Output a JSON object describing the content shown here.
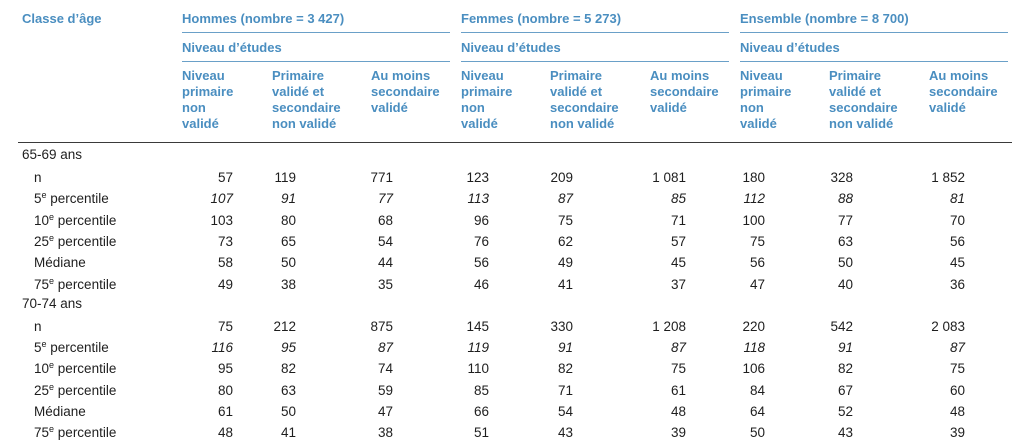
{
  "header": {
    "age_label": "Classe d’âge",
    "groups": [
      {
        "title": "Hommes (nombre = 3 427)",
        "sublabel": "Niveau d’études"
      },
      {
        "title": "Femmes (nombre = 5 273)",
        "sublabel": "Niveau d’études"
      },
      {
        "title": "Ensemble (nombre = 8 700)",
        "sublabel": "Niveau d’études"
      }
    ],
    "columns": [
      "Niveau primaire non validé",
      "Primaire validé et secondaire non validé",
      "Au moins secondaire validé"
    ]
  },
  "sections": [
    {
      "label": "65-69 ans",
      "rows": [
        {
          "label": "n",
          "sup": "",
          "values": [
            "57",
            "119",
            "771",
            "123",
            "209",
            "1 081",
            "180",
            "328",
            "1 852"
          ]
        },
        {
          "label": "5",
          "sup": "e",
          "suffix": " percentile",
          "italic": true,
          "values": [
            "107",
            "91",
            "77",
            "113",
            "87",
            "85",
            "112",
            "88",
            "81"
          ]
        },
        {
          "label": "10",
          "sup": "e",
          "suffix": " percentile",
          "values": [
            "103",
            "80",
            "68",
            "96",
            "75",
            "71",
            "100",
            "77",
            "70"
          ]
        },
        {
          "label": "25",
          "sup": "e",
          "suffix": " percentile",
          "values": [
            "73",
            "65",
            "54",
            "76",
            "62",
            "57",
            "75",
            "63",
            "56"
          ]
        },
        {
          "label": "Médiane",
          "sup": "",
          "values": [
            "58",
            "50",
            "44",
            "56",
            "49",
            "45",
            "56",
            "50",
            "45"
          ]
        },
        {
          "label": "75",
          "sup": "e",
          "suffix": " percentile",
          "values": [
            "49",
            "38",
            "35",
            "46",
            "41",
            "37",
            "47",
            "40",
            "36"
          ]
        }
      ]
    },
    {
      "label": "70-74 ans",
      "rows": [
        {
          "label": "n",
          "sup": "",
          "values": [
            "75",
            "212",
            "875",
            "145",
            "330",
            "1 208",
            "220",
            "542",
            "2 083"
          ]
        },
        {
          "label": "5",
          "sup": "e",
          "suffix": " percentile",
          "italic": true,
          "values": [
            "116",
            "95",
            "87",
            "119",
            "91",
            "87",
            "118",
            "91",
            "87"
          ]
        },
        {
          "label": "10",
          "sup": "e",
          "suffix": " percentile",
          "values": [
            "95",
            "82",
            "74",
            "110",
            "82",
            "75",
            "106",
            "82",
            "75"
          ]
        },
        {
          "label": "25",
          "sup": "e",
          "suffix": " percentile",
          "values": [
            "80",
            "63",
            "59",
            "85",
            "71",
            "61",
            "84",
            "67",
            "60"
          ]
        },
        {
          "label": "Médiane",
          "sup": "",
          "values": [
            "61",
            "50",
            "47",
            "66",
            "54",
            "48",
            "64",
            "52",
            "48"
          ]
        },
        {
          "label": "75",
          "sup": "e",
          "suffix": " percentile",
          "values": [
            "48",
            "41",
            "38",
            "51",
            "43",
            "39",
            "50",
            "43",
            "39"
          ]
        }
      ]
    }
  ]
}
